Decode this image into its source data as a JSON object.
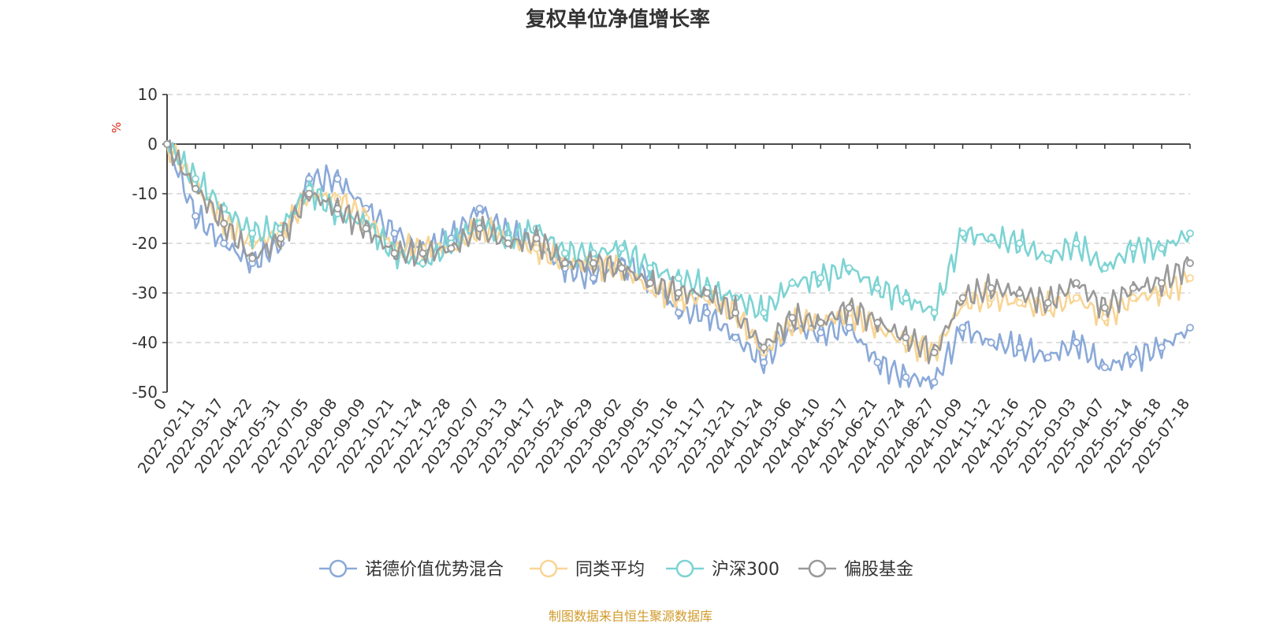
{
  "chart_data": {
    "type": "line",
    "title": "复权单位净值增长率",
    "ylabel": "%",
    "ylim": [
      -50,
      10
    ],
    "yticks": [
      10,
      0,
      -10,
      -20,
      -30,
      -40,
      -50
    ],
    "x": [
      "0",
      "2022-02-11",
      "2022-03-17",
      "2022-04-22",
      "2022-05-31",
      "2022-07-05",
      "2022-08-08",
      "2022-09-09",
      "2022-10-21",
      "2022-11-24",
      "2022-12-28",
      "2023-02-07",
      "2023-03-13",
      "2023-04-17",
      "2023-05-24",
      "2023-06-29",
      "2023-08-02",
      "2023-09-05",
      "2023-10-16",
      "2023-11-17",
      "2023-12-21",
      "2024-01-24",
      "2024-03-06",
      "2024-04-10",
      "2024-05-17",
      "2024-06-21",
      "2024-07-24",
      "2024-08-27",
      "2024-10-09",
      "2024-11-12",
      "2024-12-16",
      "2025-01-20",
      "2025-03-03",
      "2025-04-07",
      "2025-05-14",
      "2025-06-18",
      "2025-07-18"
    ],
    "series": [
      {
        "name": "诺德价值优势混合",
        "color": "#8aa9d8",
        "values": [
          0,
          -14.5,
          -20,
          -24,
          -20,
          -7,
          -7,
          -13,
          -18,
          -21,
          -19,
          -13,
          -18,
          -20,
          -25,
          -27,
          -24,
          -27,
          -34,
          -34,
          -39,
          -44,
          -37,
          -38,
          -37,
          -44,
          -47,
          -48,
          -37,
          -40,
          -41,
          -43,
          -40,
          -45,
          -43,
          -41,
          -37
        ]
      },
      {
        "name": "同类平均",
        "color": "#f8d595",
        "values": [
          0,
          -8,
          -16,
          -20,
          -18,
          -10,
          -11,
          -15,
          -21,
          -21,
          -21,
          -17,
          -19,
          -21,
          -24,
          -24,
          -25,
          -29,
          -31,
          -31,
          -34,
          -42,
          -36,
          -36,
          -34,
          -37,
          -40,
          -42,
          -32,
          -31,
          -32,
          -33,
          -31,
          -35,
          -31,
          -30,
          -27
        ]
      },
      {
        "name": "沪深300",
        "color": "#7dd3d3",
        "values": [
          0,
          -7,
          -13,
          -18,
          -17,
          -9,
          -14,
          -16,
          -22,
          -24,
          -20,
          -16,
          -19,
          -17,
          -22,
          -22,
          -21,
          -25,
          -27,
          -29,
          -31,
          -34,
          -28,
          -27,
          -25,
          -29,
          -31,
          -34,
          -18,
          -19,
          -20,
          -23,
          -20,
          -25,
          -21,
          -21,
          -18
        ]
      },
      {
        "name": "偏股基金",
        "color": "#999999",
        "values": [
          0,
          -9,
          -16,
          -23,
          -19,
          -10,
          -13,
          -17,
          -22,
          -22,
          -21,
          -17,
          -20,
          -19,
          -24,
          -24,
          -25,
          -28,
          -30,
          -30,
          -34,
          -41,
          -35,
          -36,
          -33,
          -36,
          -39,
          -42,
          -31,
          -29,
          -30,
          -32,
          -28,
          -33,
          -29,
          -28,
          -24
        ]
      }
    ],
    "legend_position": "bottom",
    "grid": "horizontal-dashed"
  },
  "source_note": "制图数据来自恒生聚源数据库",
  "colors": {
    "source_note": "#d19a2a",
    "axis": "#333333",
    "grid": "#cccccc"
  }
}
